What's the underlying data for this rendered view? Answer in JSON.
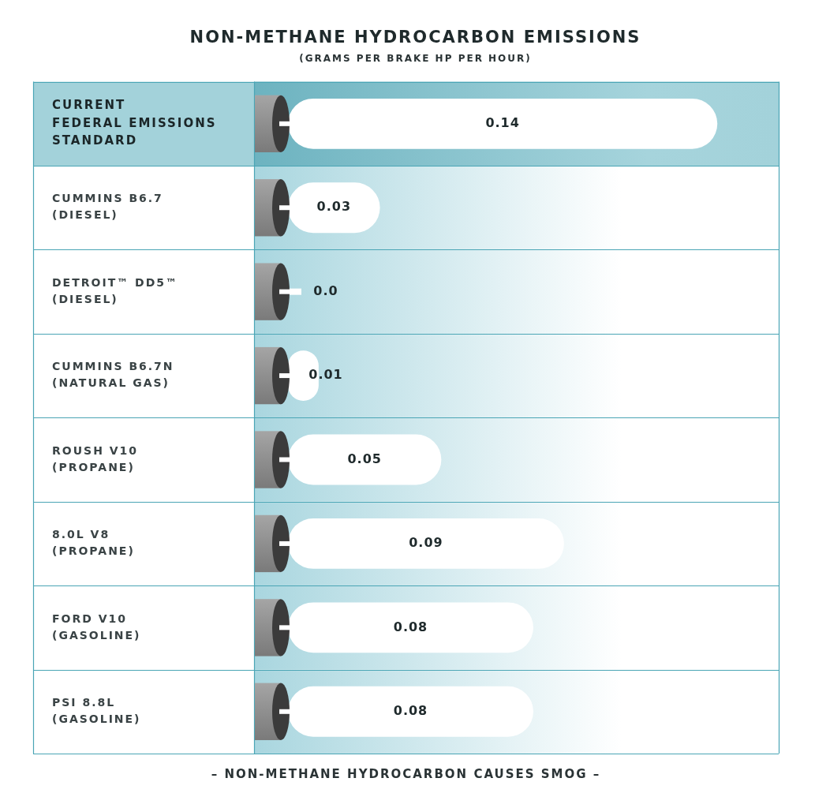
{
  "chart_data": {
    "type": "bar",
    "orientation": "horizontal",
    "title": "NON-METHANE HYDROCARBON EMISSIONS",
    "subtitle": "(GRAMS PER BRAKE HP PER HOUR)",
    "footnote": "– NON-METHANE HYDROCARBON CAUSES SMOG –",
    "categories": [
      [
        "CURRENT",
        "FEDERAL EMISSIONS",
        "STANDARD"
      ],
      [
        "CUMMINS B6.7",
        "(DIESEL)"
      ],
      [
        "DETROIT™ DD5™",
        "(DIESEL)"
      ],
      [
        "CUMMINS B6.7N",
        "(NATURAL GAS)"
      ],
      [
        "ROUSH V10",
        "(PROPANE)"
      ],
      [
        "8.0L V8",
        "(PROPANE)"
      ],
      [
        "FORD V10",
        "(GASOLINE)"
      ],
      [
        "PSI 8.8L",
        "(GASOLINE)"
      ]
    ],
    "values": [
      0.14,
      0.03,
      0,
      0.01,
      0.05,
      0.09,
      0.08,
      0.08
    ],
    "value_labels": [
      "0.14",
      "0.03",
      "0.0",
      "0.01",
      "0.05",
      "0.09",
      "0.08",
      "0.08"
    ],
    "color": "#ffffff",
    "xlim": [
      0,
      0.16
    ],
    "grid": false,
    "tick_labels": "y",
    "data_labels": true
  }
}
